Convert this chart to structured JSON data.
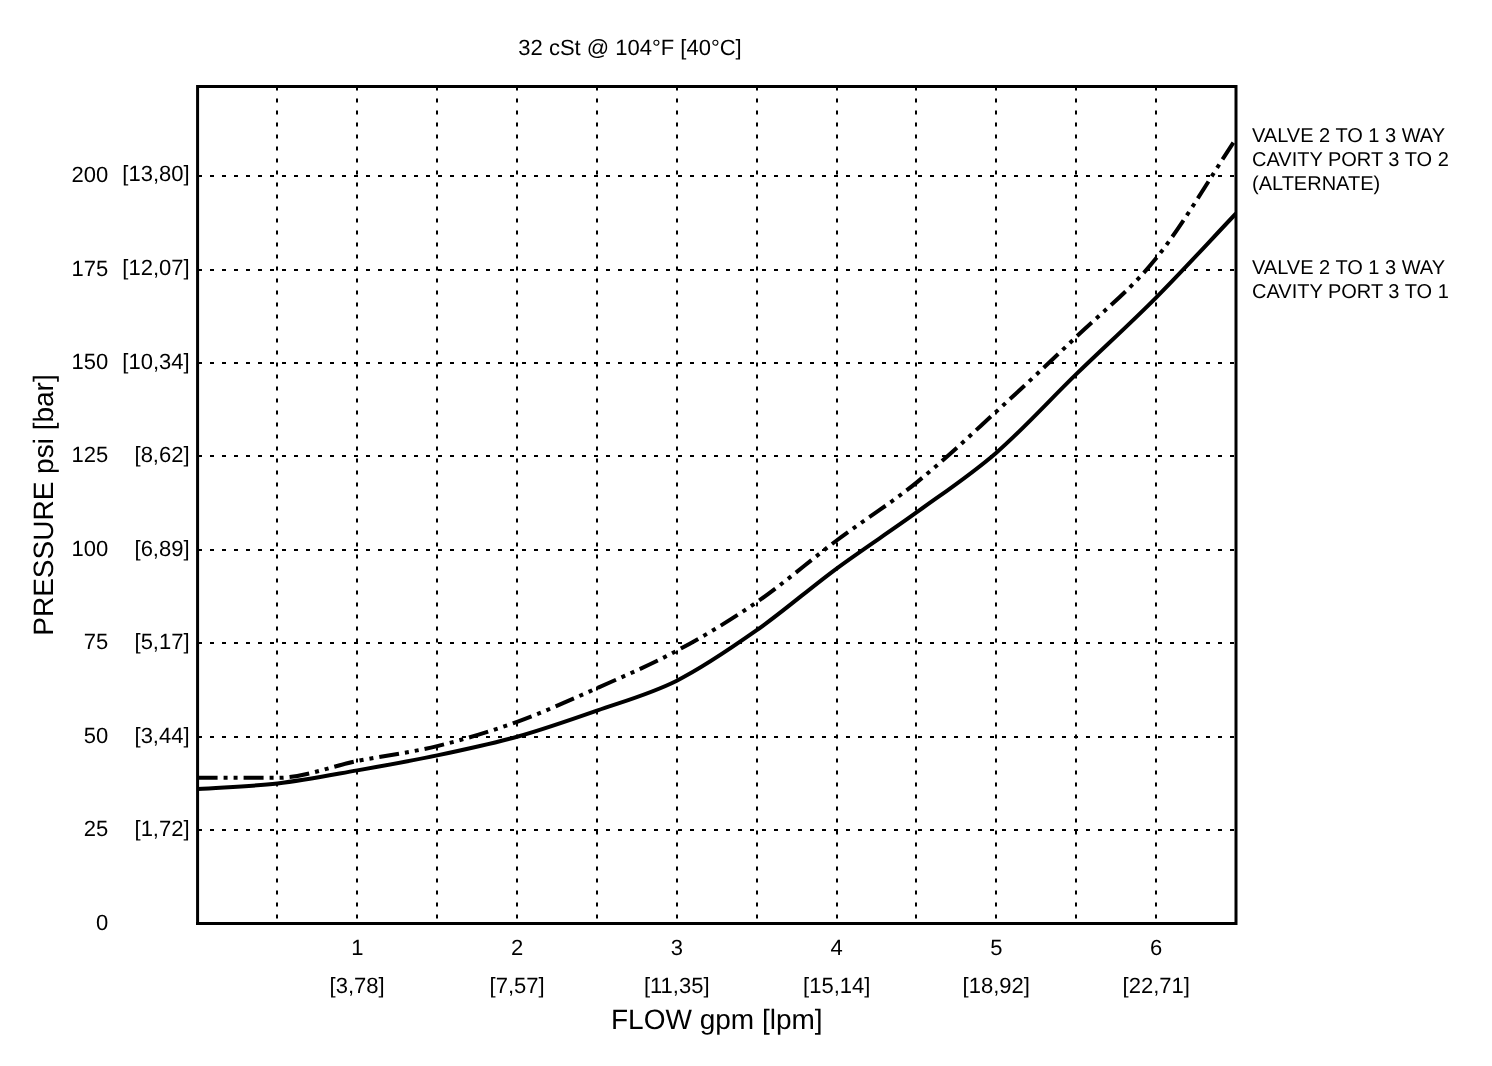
{
  "chart_data": {
    "type": "line",
    "title": "32 cSt @ 104°F [40°C]",
    "xlabel": "FLOW gpm [lpm]",
    "ylabel": "PRESSURE psi [bar]",
    "x": [
      0,
      0.5,
      1,
      1.5,
      2,
      2.5,
      3,
      3.5,
      4,
      4.5,
      5,
      5.5,
      6,
      6.5
    ],
    "series": [
      {
        "name": "VALVE 2 TO 1 3 WAY CAVITY PORT 3 TO 2 (ALTERNATE)",
        "color": "#000000",
        "line_style": "dashdot",
        "values": [
          39,
          39,
          43.5,
          47.5,
          54,
          63,
          73,
          86,
          102.5,
          118,
          137,
          157,
          178,
          210
        ]
      },
      {
        "name": "VALVE 2 TO 1 3 WAY CAVITY PORT 3 TO 1",
        "color": "#000000",
        "line_style": "solid",
        "values": [
          36,
          37.5,
          41,
          45,
          50,
          57,
          65,
          78.5,
          95,
          110,
          126,
          147,
          167.5,
          190
        ]
      }
    ],
    "xlim": [
      0,
      6.5
    ],
    "xticks": [
      {
        "value": 0.5,
        "label": null
      },
      1,
      {
        "value": 1.5,
        "label": null
      },
      2,
      {
        "value": 2.5,
        "label": null
      },
      3,
      {
        "value": 3.5,
        "label": null
      },
      4,
      {
        "value": 4.5,
        "label": null
      },
      5,
      {
        "value": 5.5,
        "label": null
      },
      6
    ],
    "x2lim": [
      0,
      24.6
    ],
    "x2ticks": [
      {
        "value": 3.78,
        "label": "[3,78]"
      },
      {
        "value": 7.57,
        "label": "[7,57]"
      },
      {
        "value": 11.35,
        "label": "[11,35]"
      },
      {
        "value": 15.14,
        "label": "[15,14]"
      },
      {
        "value": 18.92,
        "label": "[18,92]"
      },
      {
        "value": 22.71,
        "label": "[22,71]"
      }
    ],
    "ylim": [
      0,
      224
    ],
    "yticks": [
      0,
      25,
      50,
      75,
      100,
      125,
      150,
      175,
      200
    ],
    "y2lim": [
      0,
      15.44
    ],
    "y2ticks": [
      {
        "value": 1.72,
        "label": "[1,72]"
      },
      {
        "value": 3.44,
        "label": "[3,44]"
      },
      {
        "value": 5.17,
        "label": "[5,17]"
      },
      {
        "value": 6.89,
        "label": "[6,89]"
      },
      {
        "value": 8.62,
        "label": "[8,62]"
      },
      {
        "value": 10.34,
        "label": "[10,34]"
      },
      {
        "value": 12.07,
        "label": "[12,07]"
      },
      {
        "value": 13.8,
        "label": "[13,80]"
      }
    ],
    "grid": true,
    "marker": "none",
    "legend": false
  }
}
